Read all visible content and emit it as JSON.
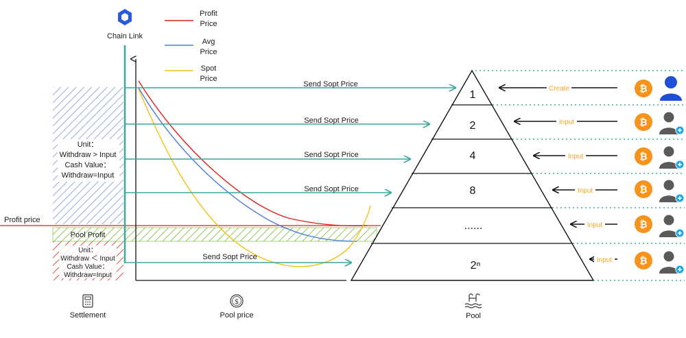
{
  "chainlink": {
    "label": "Chain Link"
  },
  "legend": [
    {
      "name": "Profit Price",
      "line1": "Profit",
      "line2": "Price",
      "color": "#e0201a"
    },
    {
      "name": "Avg Price",
      "line1": "Avg",
      "line2": "Price",
      "color": "#4a7be0"
    },
    {
      "name": "Spot Price",
      "line1": "Spot",
      "line2": "Price",
      "color": "#f2c010"
    }
  ],
  "send_labels": [
    "Send Sopt Price",
    "Send Sopt Price",
    "Send Sopt Price",
    "Send Sopt Price",
    "Send Sopt Price"
  ],
  "settlement": {
    "upper": [
      "Unit：",
      "Withdraw > Input",
      "Cash Value：",
      "Withdraw=Input"
    ],
    "profit_price_label": "Profit price",
    "pool_profit_label": "Pool Profit",
    "lower": [
      "Unit：",
      "Withdraw ＜ Input",
      "Cash Value：",
      "Withdraw=Input"
    ]
  },
  "pyramid": {
    "tiers": [
      "1",
      "2",
      "4",
      "8",
      "......",
      "2ⁿ"
    ]
  },
  "inputs": [
    "Create",
    "Input",
    "Input",
    "Input",
    "Input",
    "Input"
  ],
  "bottom": {
    "settlement": "Settlement",
    "pool_price": "Pool price",
    "pool": "Pool"
  },
  "icons": {
    "chainlink": "chainlink-hexagon-icon",
    "bitcoin": "bitcoin-icon",
    "user": "user-icon",
    "add_user": "add-user-icon",
    "calculator": "calculator-icon",
    "dollar": "dollar-coin-icon",
    "pool": "pool-icon"
  },
  "colors": {
    "teal": "#3aa89a",
    "profit_line": "#e0201a",
    "avg_line": "#4a7be0",
    "spot_line": "#f2c010",
    "bitcoin": "#f7931a",
    "user_blue": "#1f4fd6",
    "user_gray": "#5a5a5a",
    "plus_cyan": "#1aa7e8",
    "hatch_blue": "#9aa8e6",
    "hatch_green": "#8fc857",
    "hatch_red": "#e0504a"
  }
}
